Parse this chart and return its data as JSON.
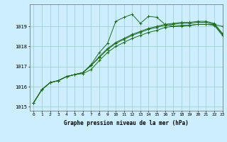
{
  "title": "Graphe pression niveau de la mer (hPa)",
  "background_color": "#cceeff",
  "grid_color": "#99cccc",
  "line_color": "#1a6b1a",
  "xlim": [
    -0.5,
    23
  ],
  "ylim": [
    1014.8,
    1020.1
  ],
  "yticks": [
    1015,
    1016,
    1017,
    1018,
    1019
  ],
  "xticks": [
    0,
    1,
    2,
    3,
    4,
    5,
    6,
    7,
    8,
    9,
    10,
    11,
    12,
    13,
    14,
    15,
    16,
    17,
    18,
    19,
    20,
    21,
    22,
    23
  ],
  "series1": [
    1015.2,
    1015.85,
    1016.2,
    1016.3,
    1016.5,
    1016.6,
    1016.7,
    1017.1,
    1017.7,
    1018.15,
    1019.25,
    1019.45,
    1019.6,
    1019.15,
    1019.5,
    1019.45,
    1019.1,
    1019.0,
    1019.0,
    1019.05,
    1019.1,
    1019.1,
    1019.1,
    1019.0
  ],
  "series2": [
    1015.2,
    1015.85,
    1016.2,
    1016.3,
    1016.5,
    1016.6,
    1016.7,
    1017.05,
    1017.45,
    1017.85,
    1018.15,
    1018.35,
    1018.55,
    1018.7,
    1018.85,
    1018.95,
    1019.05,
    1019.1,
    1019.15,
    1019.15,
    1019.2,
    1019.2,
    1019.1,
    1018.6
  ],
  "series3": [
    1015.2,
    1015.85,
    1016.2,
    1016.3,
    1016.5,
    1016.6,
    1016.7,
    1017.05,
    1017.5,
    1017.9,
    1018.2,
    1018.4,
    1018.6,
    1018.75,
    1018.9,
    1019.0,
    1019.1,
    1019.15,
    1019.2,
    1019.2,
    1019.25,
    1019.25,
    1019.15,
    1018.65
  ],
  "series4": [
    1015.2,
    1015.85,
    1016.2,
    1016.3,
    1016.5,
    1016.6,
    1016.65,
    1016.85,
    1017.3,
    1017.7,
    1018.0,
    1018.2,
    1018.4,
    1018.55,
    1018.7,
    1018.8,
    1018.95,
    1019.0,
    1019.05,
    1019.05,
    1019.1,
    1019.1,
    1019.05,
    1018.55
  ]
}
